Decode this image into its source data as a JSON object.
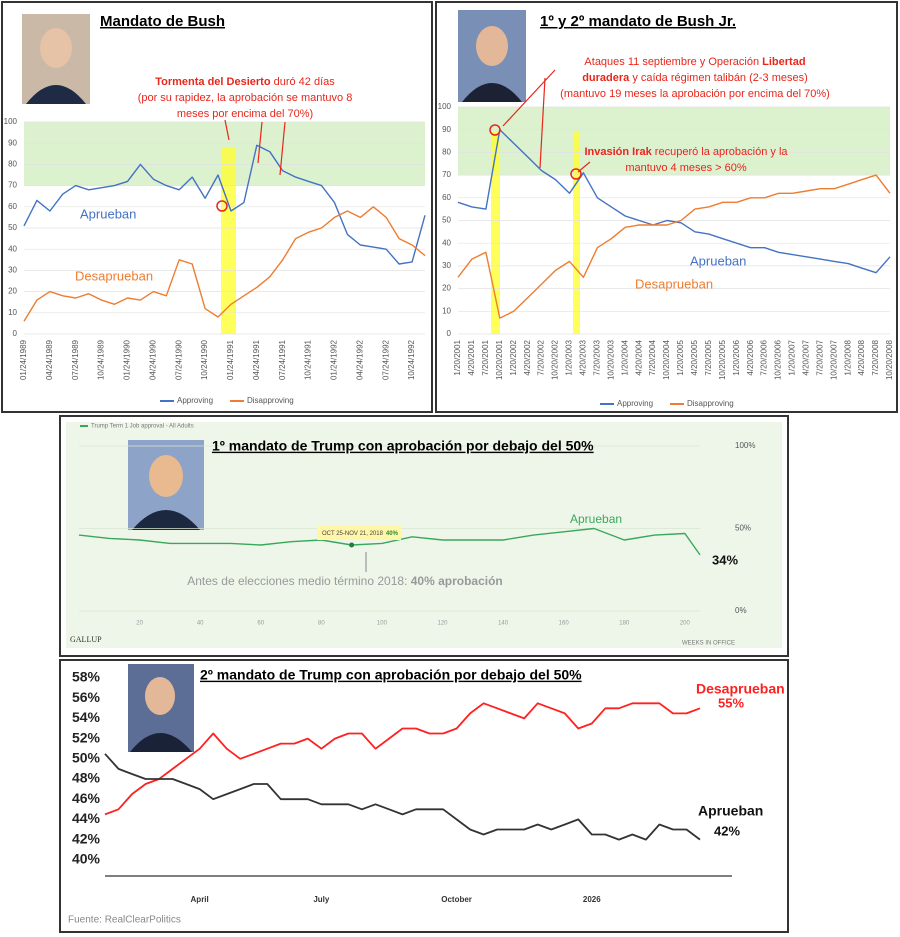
{
  "chart_data": [
    {
      "type": "line",
      "title": "Mandato de Bush",
      "categories": [
        "01/24/1989",
        null,
        "04/24/1989",
        null,
        "07/24/1989",
        null,
        "10/24/1989",
        null,
        "01/24/1990",
        null,
        "04/24/1990",
        null,
        "07/24/1990",
        null,
        "10/24/1990",
        null,
        "01/24/1991",
        null,
        "04/24/1991",
        null,
        "07/24/1991",
        null,
        "10/24/1991",
        null,
        "01/24/1992",
        null,
        "04/24/1992",
        null,
        "07/24/1992",
        null,
        "10/24/1992",
        null
      ],
      "ylim": [
        0,
        100
      ],
      "yticks": [
        0,
        10,
        20,
        30,
        40,
        50,
        60,
        70,
        80,
        90,
        100
      ],
      "grid": true,
      "highlight": [
        70,
        100
      ],
      "series": [
        {
          "name": "Approving",
          "label": "Aprueban",
          "color": "#4472c4",
          "values": [
            51,
            63,
            58,
            66,
            70,
            68,
            69,
            70,
            72,
            80,
            73,
            70,
            68,
            74,
            64,
            75,
            58,
            62,
            89,
            86,
            77,
            74,
            72,
            70,
            62,
            47,
            42,
            41,
            40,
            33,
            34,
            56
          ]
        },
        {
          "name": "Disapproving",
          "label": "Desaprueban",
          "color": "#ed7d31",
          "values": [
            6,
            16,
            20,
            18,
            17,
            19,
            16,
            14,
            17,
            16,
            20,
            18,
            35,
            33,
            12,
            8,
            14,
            18,
            22,
            27,
            35,
            45,
            48,
            50,
            55,
            58,
            55,
            60,
            55,
            45,
            42,
            37
          ]
        }
      ],
      "annotations": [
        {
          "lines": [
            [
              {
                "text": "Tormenta del Desierto",
                "bold": true
              },
              {
                "text": " duró 42 días"
              }
            ],
            [
              {
                "text": "(por su rapidez, la aprobación se mantuvo 8"
              }
            ],
            [
              {
                "text": "meses por encima del 70%)"
              }
            ]
          ]
        }
      ],
      "legend": "bottom"
    },
    {
      "type": "line",
      "title": "1º y 2º mandato de Bush Jr.",
      "categories": [
        "1/20/2001",
        "4/20/2001",
        "7/20/2001",
        "10/20/2001",
        "1/20/2002",
        "4/20/2002",
        "7/20/2002",
        "10/20/2002",
        "1/20/2003",
        "4/20/2003",
        "7/20/2003",
        "10/20/2003",
        "1/20/2004",
        "4/20/2004",
        "7/20/2004",
        "10/20/2004",
        "1/20/2005",
        "4/20/2005",
        "7/20/2005",
        "10/20/2005",
        "1/20/2006",
        "4/20/2006",
        "7/20/2006",
        "10/20/2006",
        "1/20/2007",
        "4/20/2007",
        "7/20/2007",
        "10/20/2007",
        "1/20/2008",
        "4/20/2008",
        "7/20/2008",
        "10/20/2008"
      ],
      "ylim": [
        0,
        100
      ],
      "yticks": [
        0,
        10,
        20,
        30,
        40,
        50,
        60,
        70,
        80,
        90,
        100
      ],
      "grid": true,
      "highlight": [
        70,
        100
      ],
      "series": [
        {
          "name": "Approving",
          "label": "Aprueban",
          "color": "#4472c4",
          "values": [
            58,
            56,
            55,
            90,
            84,
            78,
            72,
            68,
            62,
            71,
            60,
            56,
            52,
            50,
            48,
            50,
            49,
            45,
            44,
            42,
            40,
            38,
            38,
            36,
            35,
            34,
            33,
            32,
            31,
            29,
            27,
            34
          ]
        },
        {
          "name": "Disapproving",
          "label": "Desaprueban",
          "color": "#ed7d31",
          "values": [
            25,
            33,
            36,
            7,
            10,
            16,
            22,
            28,
            32,
            25,
            38,
            42,
            47,
            48,
            48,
            48,
            50,
            55,
            56,
            58,
            58,
            60,
            60,
            62,
            62,
            63,
            64,
            64,
            66,
            68,
            70,
            62
          ]
        }
      ],
      "annotations": [
        {
          "lines": [
            [
              {
                "text": "Ataques 11 septiembre y Operación "
              },
              {
                "text": "Libertad",
                "bold": true
              }
            ],
            [
              {
                "text": "duradera",
                "bold": true
              },
              {
                "text": " y caída régimen talibán (2-3 meses)"
              }
            ],
            [
              {
                "text": "(mantuvo 19 meses la aprobación por encima del 70%)"
              }
            ]
          ]
        },
        {
          "lines": [
            [
              {
                "text": "Invasión Irak",
                "bold": true
              },
              {
                "text": " recuperó la aprobación y la"
              }
            ],
            [
              {
                "text": "mantuvo 4 meses > 60%"
              }
            ]
          ]
        }
      ],
      "legend": "bottom"
    },
    {
      "type": "line",
      "title": "1º mandato de Trump con aprobación por debajo del 50%",
      "x": [
        0,
        10,
        20,
        30,
        40,
        50,
        60,
        70,
        80,
        90,
        100,
        110,
        120,
        130,
        140,
        150,
        160,
        170,
        180,
        190,
        200,
        205
      ],
      "xlim": [
        0,
        205
      ],
      "xticks": [
        20,
        40,
        60,
        80,
        100,
        120,
        140,
        160,
        180,
        200
      ],
      "xlabel": "WEEKS IN OFFICE",
      "ylim": [
        0,
        100
      ],
      "yticks": [
        {
          "value": 0,
          "label": "0%"
        },
        {
          "value": 50,
          "label": "50%"
        },
        {
          "value": 100,
          "label": "100%"
        }
      ],
      "grid": true,
      "series": [
        {
          "name": "Trump Term 1 Job approval - All Adults",
          "label": "Aprueban",
          "color": "#3aa85a",
          "end_label": "34%",
          "values": [
            46,
            44,
            43,
            41,
            41,
            41,
            40,
            42,
            43,
            40,
            41,
            45,
            43,
            43,
            43,
            46,
            48,
            50,
            43,
            46,
            47,
            34
          ]
        }
      ],
      "source": "GALLUP",
      "annotations": [
        {
          "lines": [
            [
              {
                "text": "Antes de elecciones medio término 2018: "
              },
              {
                "text": "40% aprobación",
                "bold": true
              }
            ]
          ]
        },
        {
          "lines": [
            [
              {
                "text": "OCT 25-NOV 21, 2018"
              },
              {
                "text": "40%",
                "bold": true
              }
            ]
          ]
        }
      ],
      "legend": "top-left"
    },
    {
      "type": "line",
      "title": "2º mandato de Trump con aprobación por debajo del 50%",
      "categories": [
        null,
        null,
        null,
        null,
        null,
        null,
        null,
        "April",
        null,
        null,
        null,
        null,
        null,
        null,
        null,
        null,
        "July",
        null,
        null,
        null,
        null,
        null,
        null,
        null,
        null,
        null,
        "October",
        null,
        null,
        null,
        null,
        null,
        null,
        null,
        null,
        null,
        "2026",
        null,
        null,
        null,
        null,
        null,
        null,
        null,
        null
      ],
      "ylim": [
        38,
        58
      ],
      "yticks": [
        {
          "value": 40,
          "label": "40%"
        },
        {
          "value": 42,
          "label": "42%"
        },
        {
          "value": 44,
          "label": "44%"
        },
        {
          "value": 46,
          "label": "46%"
        },
        {
          "value": 48,
          "label": "48%"
        },
        {
          "value": 50,
          "label": "50%"
        },
        {
          "value": 52,
          "label": "52%"
        },
        {
          "value": 54,
          "label": "54%"
        },
        {
          "value": 56,
          "label": "56%"
        },
        {
          "value": 58,
          "label": "58%"
        }
      ],
      "grid": false,
      "series": [
        {
          "name": "Desaprueban",
          "color": "#ff2020",
          "end_label": "55%",
          "values": [
            44.5,
            45,
            46.5,
            47.5,
            48,
            49,
            50,
            51,
            52.5,
            51,
            50,
            50.5,
            51,
            51.5,
            51.5,
            52,
            51,
            52,
            52.5,
            52.5,
            51,
            52,
            53,
            53,
            52.5,
            52.5,
            53,
            54.5,
            55.5,
            55,
            54.5,
            54,
            55.5,
            55,
            54.5,
            53,
            53.5,
            55,
            55,
            55.5,
            55.5,
            55.5,
            54.5,
            54.5,
            55
          ]
        },
        {
          "name": "Aprueban",
          "color": "#333333",
          "end_label": "42%",
          "values": [
            50.5,
            49,
            48.5,
            48,
            48,
            48,
            47.5,
            47,
            46,
            46.5,
            47,
            47.5,
            47.5,
            46,
            46,
            46,
            45.5,
            45.5,
            45.5,
            45,
            45.5,
            45,
            44.5,
            45,
            45,
            45,
            44,
            43,
            42.5,
            43,
            43,
            43,
            43.5,
            43,
            43.5,
            44,
            42.5,
            42.5,
            42,
            42.5,
            42,
            43.5,
            43,
            43,
            42
          ]
        }
      ],
      "source": "Fuente: RealClearPolitics"
    }
  ]
}
